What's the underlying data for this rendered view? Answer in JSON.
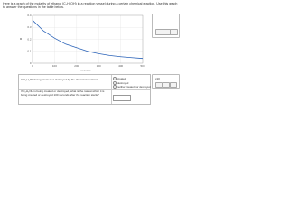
{
  "intro": "Here is a graph of the molarity of ethanol (C₂H₅OH) in a reaction vessel during a certain chemical reaction. Use this graph to answer the questions in the table below.",
  "chart_data": {
    "type": "line",
    "xlabel": "seconds",
    "ylabel": "M",
    "x": [
      0,
      50,
      100,
      150,
      200,
      250,
      300,
      350,
      400,
      450,
      500
    ],
    "series": [
      {
        "name": null,
        "color": "#2a62b8",
        "values": [
          0.36,
          0.27,
          0.21,
          0.16,
          0.13,
          0.1,
          0.08,
          0.065,
          0.055,
          0.047,
          0.04
        ]
      }
    ],
    "xlim": [
      0,
      500
    ],
    "ylim": [
      0,
      0.4
    ],
    "xticks": [
      0,
      100,
      200,
      300,
      400,
      500
    ],
    "yticks": [
      0,
      0.1,
      0.2,
      0.3,
      0.4
    ],
    "grid": true
  },
  "table": {
    "rows": [
      {
        "question": "Is C₂H₅OH being created or destroyed by the chemical reaction?",
        "options": [
          "created",
          "destroyed",
          "neither created nor destroyed"
        ]
      },
      {
        "question": "If C₂H₅OH is being created or destroyed, what is the rate at which it is being created or destroyed 100 seconds after the reaction starts?"
      }
    ]
  },
  "unit_tool": "x10"
}
